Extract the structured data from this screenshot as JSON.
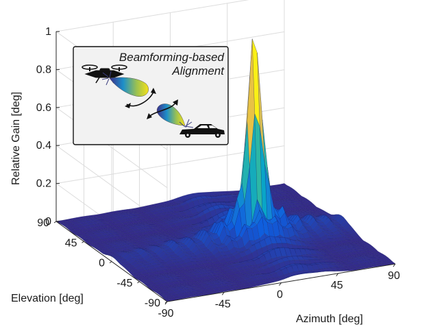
{
  "chart_data": {
    "type": "surface",
    "title": "",
    "xlabel": "Azimuth [deg]",
    "ylabel": "Elevation [deg]",
    "zlabel": "Relative Gain [deg]",
    "xlim": [
      -90,
      90
    ],
    "ylim": [
      -90,
      90
    ],
    "zlim": [
      0,
      1
    ],
    "x_ticks": [
      "-90",
      "-45",
      "0",
      "45",
      "90"
    ],
    "y_ticks": [
      "90",
      "45",
      "0",
      "-45",
      "-90"
    ],
    "z_ticks": [
      "0",
      "0.2",
      "0.4",
      "0.6",
      "0.8",
      "1"
    ],
    "peak": {
      "azimuth": 20,
      "elevation": -5,
      "gain": 0.86
    },
    "grid": true,
    "colormap": "parula",
    "colormap_colors": [
      "#352a87",
      "#0f5cdd",
      "#1481d6",
      "#06a4ca",
      "#2eb7a4",
      "#87bf77",
      "#d1bb59",
      "#fec832",
      "#f9fb0e"
    ],
    "inset": {
      "title_line1": "Beamforming-based",
      "title_line2": "Alignment",
      "icons": [
        "drone-icon",
        "car-icon",
        "beam-icon",
        "arrow-icon"
      ]
    }
  }
}
